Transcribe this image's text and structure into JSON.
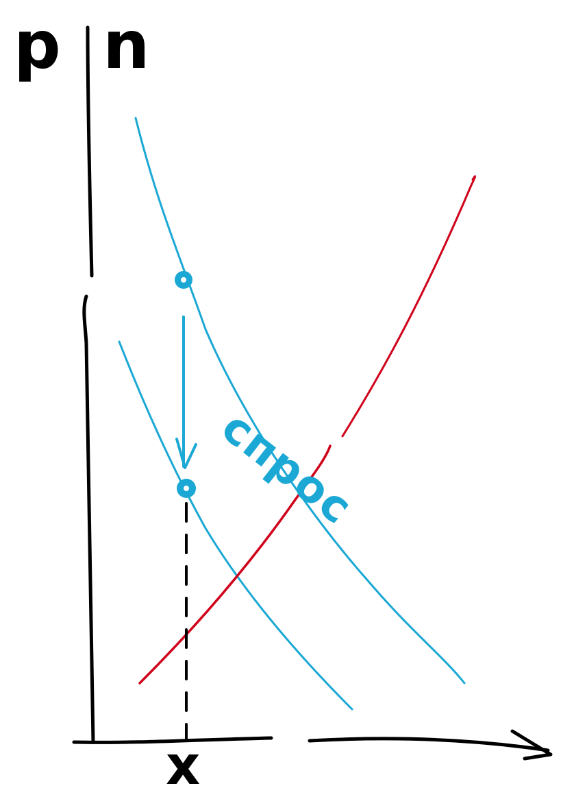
{
  "labels": {
    "y_axis": "p n",
    "x_axis": "x",
    "demand_curve": "спрос"
  },
  "colors": {
    "axis": "#000000",
    "demand": "#1ba8d4",
    "supply": "#d0021b"
  },
  "elements": {
    "axes": [
      "y-axis",
      "x-axis",
      "x-axis-arrowhead"
    ],
    "curves": [
      "demand-curve-initial",
      "demand-curve-shifted",
      "supply-curve"
    ],
    "markers": [
      "point-initial",
      "point-shifted",
      "shift-arrow",
      "dashed-guide"
    ]
  }
}
